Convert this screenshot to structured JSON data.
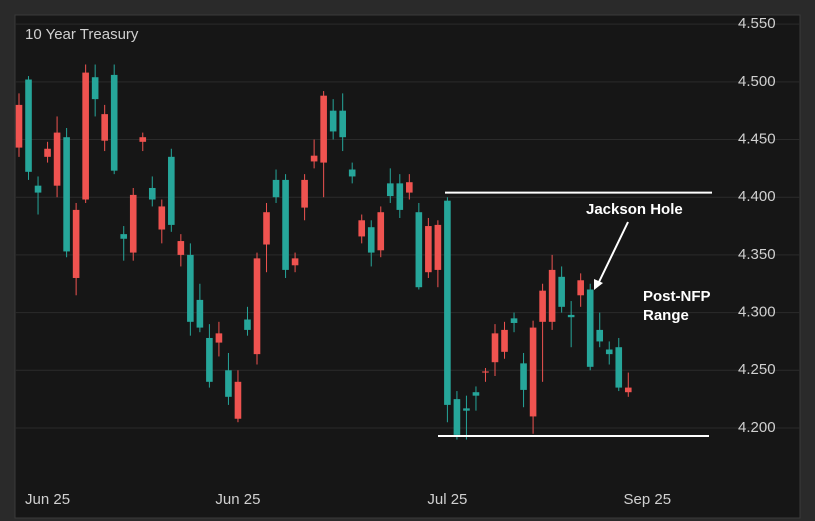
{
  "chart_data": {
    "type": "candlestick",
    "title": "10 Year Treasury",
    "categories": [
      null,
      null,
      null,
      "Jun 25",
      null,
      null,
      null,
      null,
      null,
      null,
      null,
      null,
      null,
      null,
      null,
      null,
      null,
      null,
      null,
      null,
      null,
      null,
      null,
      "Jun 25",
      null,
      null,
      null,
      null,
      null,
      null,
      null,
      null,
      null,
      null,
      null,
      null,
      null,
      null,
      null,
      null,
      null,
      null,
      null,
      null,
      null,
      "Jul 25",
      null,
      null,
      null,
      null,
      null,
      null,
      null,
      null,
      null,
      null,
      null,
      null,
      null,
      null,
      null,
      null,
      null,
      null,
      null,
      null,
      "Sep 25"
    ],
    "open": [
      4.48,
      4.422,
      4.404,
      4.442,
      4.456,
      4.353,
      4.389,
      4.508,
      4.485,
      4.472,
      4.423,
      4.364,
      4.402,
      4.452,
      4.398,
      4.392,
      4.376,
      4.362,
      4.292,
      4.287,
      4.24,
      4.282,
      4.227,
      4.24,
      4.285,
      4.347,
      4.387,
      4.4,
      4.337,
      4.347,
      4.415,
      4.436,
      4.488,
      4.457,
      4.452,
      4.418,
      4.38,
      4.352,
      4.387,
      4.401,
      4.389,
      4.413,
      4.322,
      4.375,
      4.376,
      4.22,
      4.194,
      4.215,
      4.228,
      4.249,
      4.282,
      4.285,
      4.291,
      4.233,
      4.287,
      4.319,
      4.337,
      4.305,
      4.296,
      4.328,
      4.253,
      4.275,
      4.264,
      4.235,
      4.235,
      null,
      null
    ],
    "high": [
      4.49,
      4.505,
      4.418,
      4.448,
      4.47,
      4.46,
      4.395,
      4.515,
      4.515,
      4.48,
      4.515,
      4.375,
      4.408,
      4.456,
      4.418,
      4.398,
      4.442,
      4.368,
      4.36,
      4.325,
      4.29,
      4.292,
      4.265,
      4.25,
      4.305,
      4.352,
      4.395,
      4.424,
      4.42,
      4.352,
      4.42,
      4.45,
      4.492,
      4.485,
      4.49,
      4.43,
      4.385,
      4.38,
      4.392,
      4.425,
      4.42,
      4.42,
      4.395,
      4.382,
      4.38,
      4.4,
      4.232,
      4.228,
      4.236,
      4.252,
      4.29,
      4.292,
      4.3,
      4.265,
      4.293,
      4.325,
      4.35,
      4.34,
      4.31,
      4.334,
      4.325,
      4.3,
      4.275,
      4.278,
      4.248,
      null,
      null
    ],
    "low": [
      4.435,
      4.415,
      4.385,
      4.43,
      4.4,
      4.348,
      4.315,
      4.395,
      4.47,
      4.44,
      4.42,
      4.345,
      4.345,
      4.44,
      4.392,
      4.36,
      4.37,
      4.34,
      4.28,
      4.283,
      4.235,
      4.262,
      4.22,
      4.205,
      4.28,
      4.255,
      4.335,
      4.395,
      4.33,
      4.335,
      4.38,
      4.425,
      4.4,
      4.45,
      4.44,
      4.412,
      4.36,
      4.34,
      4.348,
      4.395,
      4.382,
      4.398,
      4.32,
      4.33,
      4.322,
      4.205,
      4.19,
      4.19,
      4.215,
      4.24,
      4.245,
      4.26,
      4.283,
      4.218,
      4.195,
      4.24,
      4.285,
      4.3,
      4.27,
      4.305,
      4.25,
      4.27,
      4.255,
      4.232,
      4.227,
      null,
      null
    ],
    "close": [
      4.443,
      4.502,
      4.41,
      4.435,
      4.41,
      4.452,
      4.33,
      4.398,
      4.504,
      4.449,
      4.506,
      4.368,
      4.352,
      4.448,
      4.408,
      4.372,
      4.435,
      4.35,
      4.35,
      4.311,
      4.278,
      4.274,
      4.25,
      4.208,
      4.294,
      4.264,
      4.359,
      4.415,
      4.415,
      4.341,
      4.391,
      4.431,
      4.43,
      4.475,
      4.475,
      4.424,
      4.366,
      4.374,
      4.354,
      4.412,
      4.412,
      4.404,
      4.387,
      4.335,
      4.337,
      4.397,
      4.225,
      4.217,
      4.231,
      4.248,
      4.257,
      4.266,
      4.295,
      4.256,
      4.21,
      4.292,
      4.292,
      4.331,
      4.298,
      4.315,
      4.32,
      4.285,
      4.268,
      4.27,
      4.231,
      null,
      null
    ],
    "up_color": "#26a69a",
    "down_color": "#ef5350",
    "ylim": [
      4.14,
      4.56
    ],
    "yticks": [
      {
        "value": 4.2,
        "label": "4.200"
      },
      {
        "value": 4.25,
        "label": "4.250"
      },
      {
        "value": 4.3,
        "label": "4.300"
      },
      {
        "value": 4.35,
        "label": "4.350"
      },
      {
        "value": 4.4,
        "label": "4.400"
      },
      {
        "value": 4.45,
        "label": "4.450"
      },
      {
        "value": 4.5,
        "label": "4.500"
      },
      {
        "value": 4.55,
        "label": "4.550"
      }
    ],
    "grid": true,
    "levels": [
      4.404,
      4.193
    ],
    "annotations": [
      "Jackson Hole",
      "Post-NFP",
      "Range"
    ]
  }
}
